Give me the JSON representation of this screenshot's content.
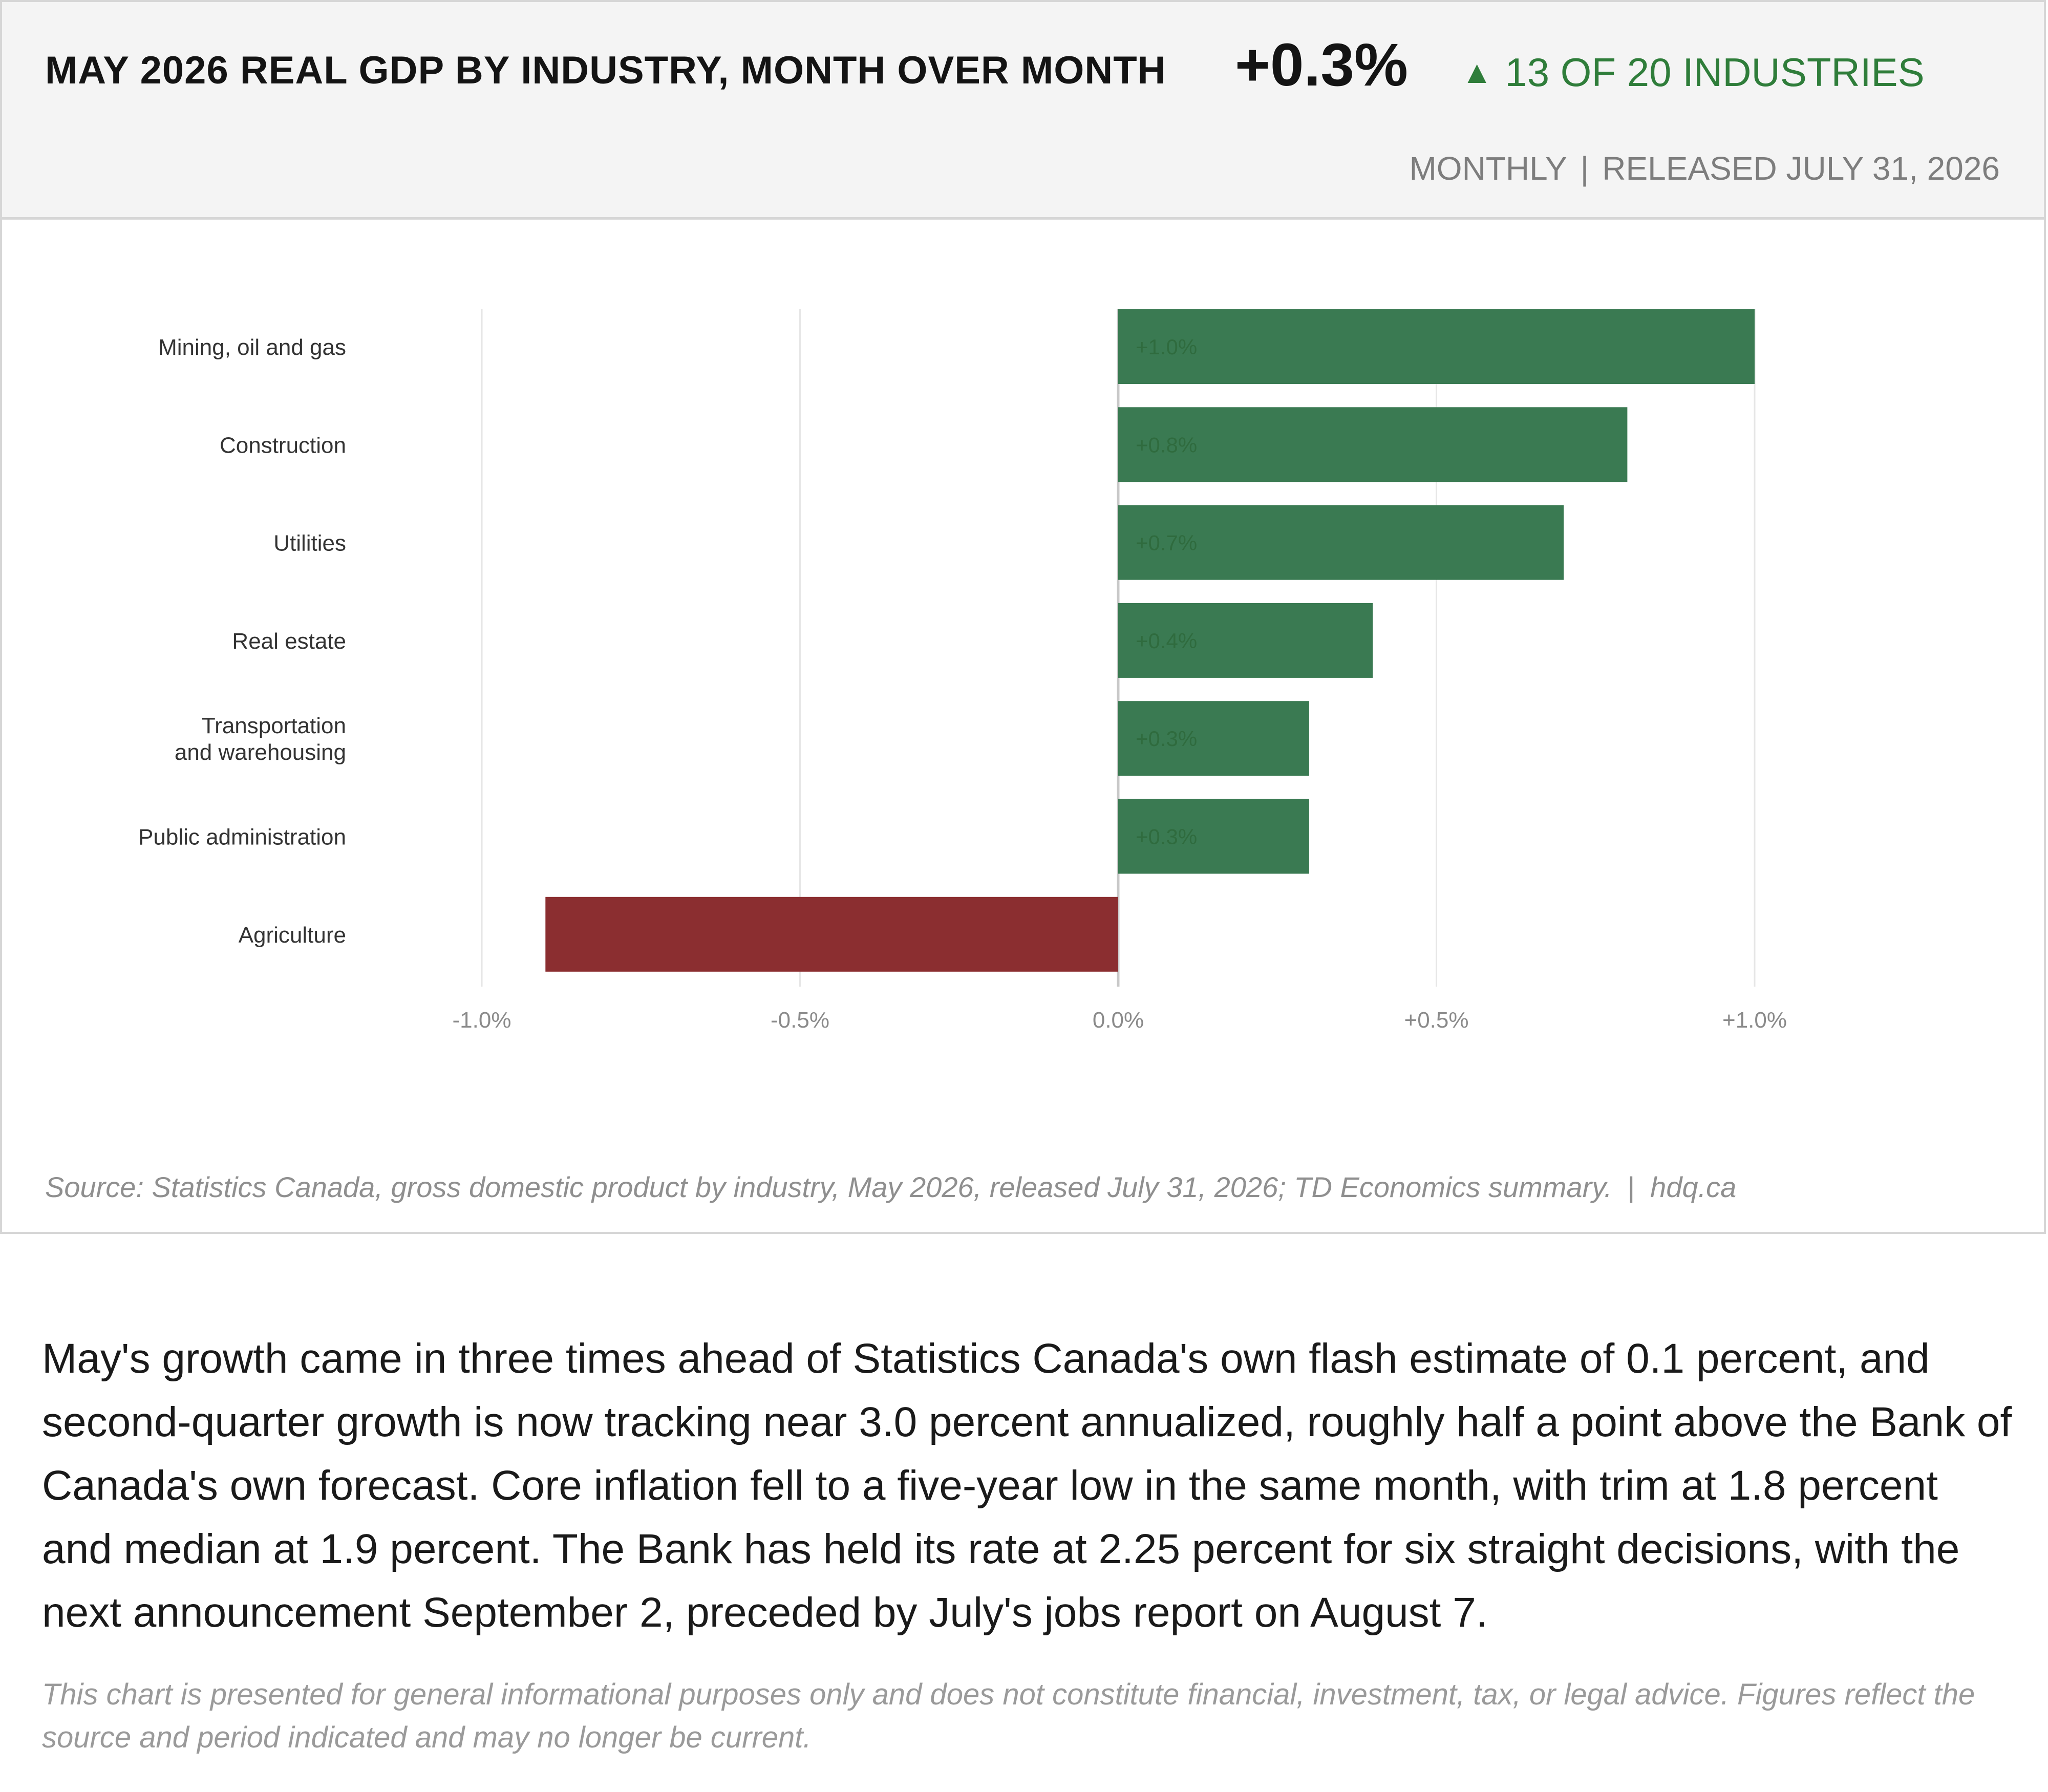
{
  "header": {
    "title": "MAY 2026 REAL GDP BY INDUSTRY, MONTH OVER MONTH",
    "headline_value": "+0.3%",
    "breadth_arrow": "▲",
    "breadth_text": "13 OF 20 INDUSTRIES",
    "frequency": "MONTHLY",
    "separator": "|",
    "release": "RELEASED JULY 31, 2026"
  },
  "chart_data": {
    "type": "bar",
    "orientation": "horizontal",
    "unit": "%",
    "categories": [
      "Mining, oil and gas",
      "Construction",
      "Utilities",
      "Real estate",
      "Transportation and warehousing",
      "Public administration",
      "Agriculture"
    ],
    "category_lines": [
      [
        "Mining, oil and gas"
      ],
      [
        "Construction"
      ],
      [
        "Utilities"
      ],
      [
        "Real estate"
      ],
      [
        "Transportation",
        "and warehousing"
      ],
      [
        "Public administration"
      ],
      [
        "Agriculture"
      ]
    ],
    "values": [
      1.0,
      0.8,
      0.7,
      0.4,
      0.3,
      0.3,
      -0.9
    ],
    "data_labels": [
      "+1.0%",
      "+0.8%",
      "+0.7%",
      "+0.4%",
      "+0.3%",
      "+0.3%",
      ""
    ],
    "xlim": [
      -1.0,
      1.0
    ],
    "x_ticks": [
      -1.0,
      -0.5,
      0.0,
      0.5,
      1.0
    ],
    "x_tick_labels": [
      "-1.0%",
      "-0.5%",
      "0.0%",
      "+0.5%",
      "+1.0%"
    ],
    "grid": "vertical",
    "colors": {
      "positive": "#3a7a52",
      "negative": "#8b2e30",
      "label_on_bar": "#2f6b3e",
      "grid": "#e6e6e6",
      "zero_line": "#c8c8c8",
      "category_text": "#333333",
      "tick_text": "#8a8a8a"
    },
    "title": "",
    "xlabel": "",
    "ylabel": ""
  },
  "footer": {
    "source": "Source: Statistics Canada, gross domestic product by industry, May 2026, released July 31, 2026; TD Economics summary.",
    "separator": "|",
    "site": "hdq.ca"
  },
  "commentary": "May's growth came in three times ahead of Statistics Canada's own flash estimate of 0.1 percent, and second-quarter growth is now tracking near 3.0 percent annualized, roughly half a point above the Bank of Canada's own forecast. Core inflation fell to a five-year low in the same month, with trim at 1.8 percent and median at 1.9 percent. The Bank has held its rate at 2.25 percent for six straight decisions, with the next announcement September 2, preceded by July's jobs report on August 7.",
  "disclaimer": "This chart is presented for general informational purposes only and does not constitute financial, investment, tax, or legal advice. Figures reflect the source and period indicated and may no longer be current."
}
